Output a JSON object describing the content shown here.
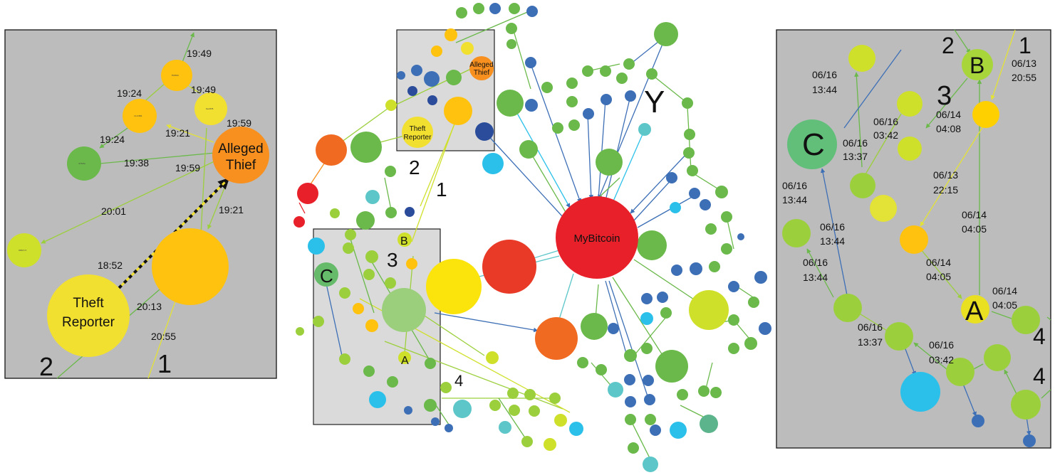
{
  "colors": {
    "panel_bg": "#bcbcbc",
    "inset_bg": "#d4d4d4",
    "red": "#e8202a",
    "orange": "#f7901e",
    "gold": "#ffc20e",
    "yellow": "#f2e030",
    "yellow_green": "#cfe02a",
    "light_green": "#9ccf3c",
    "green": "#6ab94a",
    "teal": "#5cc6c8",
    "cyan": "#2bc0ea",
    "blue": "#3d6fb6",
    "dark_blue": "#2b4c9a"
  },
  "left_panel": {
    "times": {
      "t1949a": "19:49",
      "t1924a": "19:24",
      "t1949b": "19:49",
      "t1959a": "19:59",
      "t1924b": "19:24",
      "t1921a": "19:21",
      "t1938": "19:38",
      "t1959b": "19:59",
      "t2001": "20:01",
      "t1921b": "19:21",
      "t1852": "18:52",
      "t2013": "20:13",
      "t2055": "20:55"
    },
    "thief_label_1": "Alleged",
    "thief_label_2": "Thief",
    "reporter_label_1": "Theft",
    "reporter_label_2": "Reporter",
    "marker_1": "1",
    "marker_2": "2"
  },
  "center_panel": {
    "mybitcoin_label": "MyBitcoin",
    "thief_label_1": "Alleged",
    "thief_label_2": "Thief",
    "reporter_label_1": "Theft",
    "reporter_label_2": "Reporter",
    "marker_1": "1",
    "marker_2": "2",
    "marker_3": "3",
    "marker_4": "4",
    "marker_y": "Y",
    "marker_a": "A",
    "marker_b": "B",
    "marker_c": "C"
  },
  "right_panel": {
    "marker_a": "A",
    "marker_b": "B",
    "marker_c": "C",
    "marker_1": "1",
    "marker_2": "2",
    "marker_3": "3",
    "marker_4a": "4",
    "marker_4b": "4",
    "times": {
      "r_0616_1344_a": [
        "06/16",
        "13:44"
      ],
      "r_0613_2055": [
        "06/13",
        "20:55"
      ],
      "r_0614_0408": [
        "06/14",
        "04:08"
      ],
      "r_0616_0342_a": [
        "06/16",
        "03:42"
      ],
      "r_0616_1337_a": [
        "06/16",
        "13:37"
      ],
      "r_0613_2215": [
        "06/13",
        "22:15"
      ],
      "r_0616_1344_b": [
        "06/16",
        "13:44"
      ],
      "r_0614_0405_a": [
        "06/14",
        "04:05"
      ],
      "r_0616_1344_c": [
        "06/16",
        "13:44"
      ],
      "r_0616_1344_d": [
        "06/16",
        "13:44"
      ],
      "r_0614_0405_b": [
        "06/14",
        "04:05"
      ],
      "r_0614_0405_c": [
        "06/14",
        "04:05"
      ],
      "r_0616_1337_b": [
        "06/16",
        "13:37"
      ],
      "r_0616_0342_b": [
        "06/16",
        "03:42"
      ]
    }
  }
}
